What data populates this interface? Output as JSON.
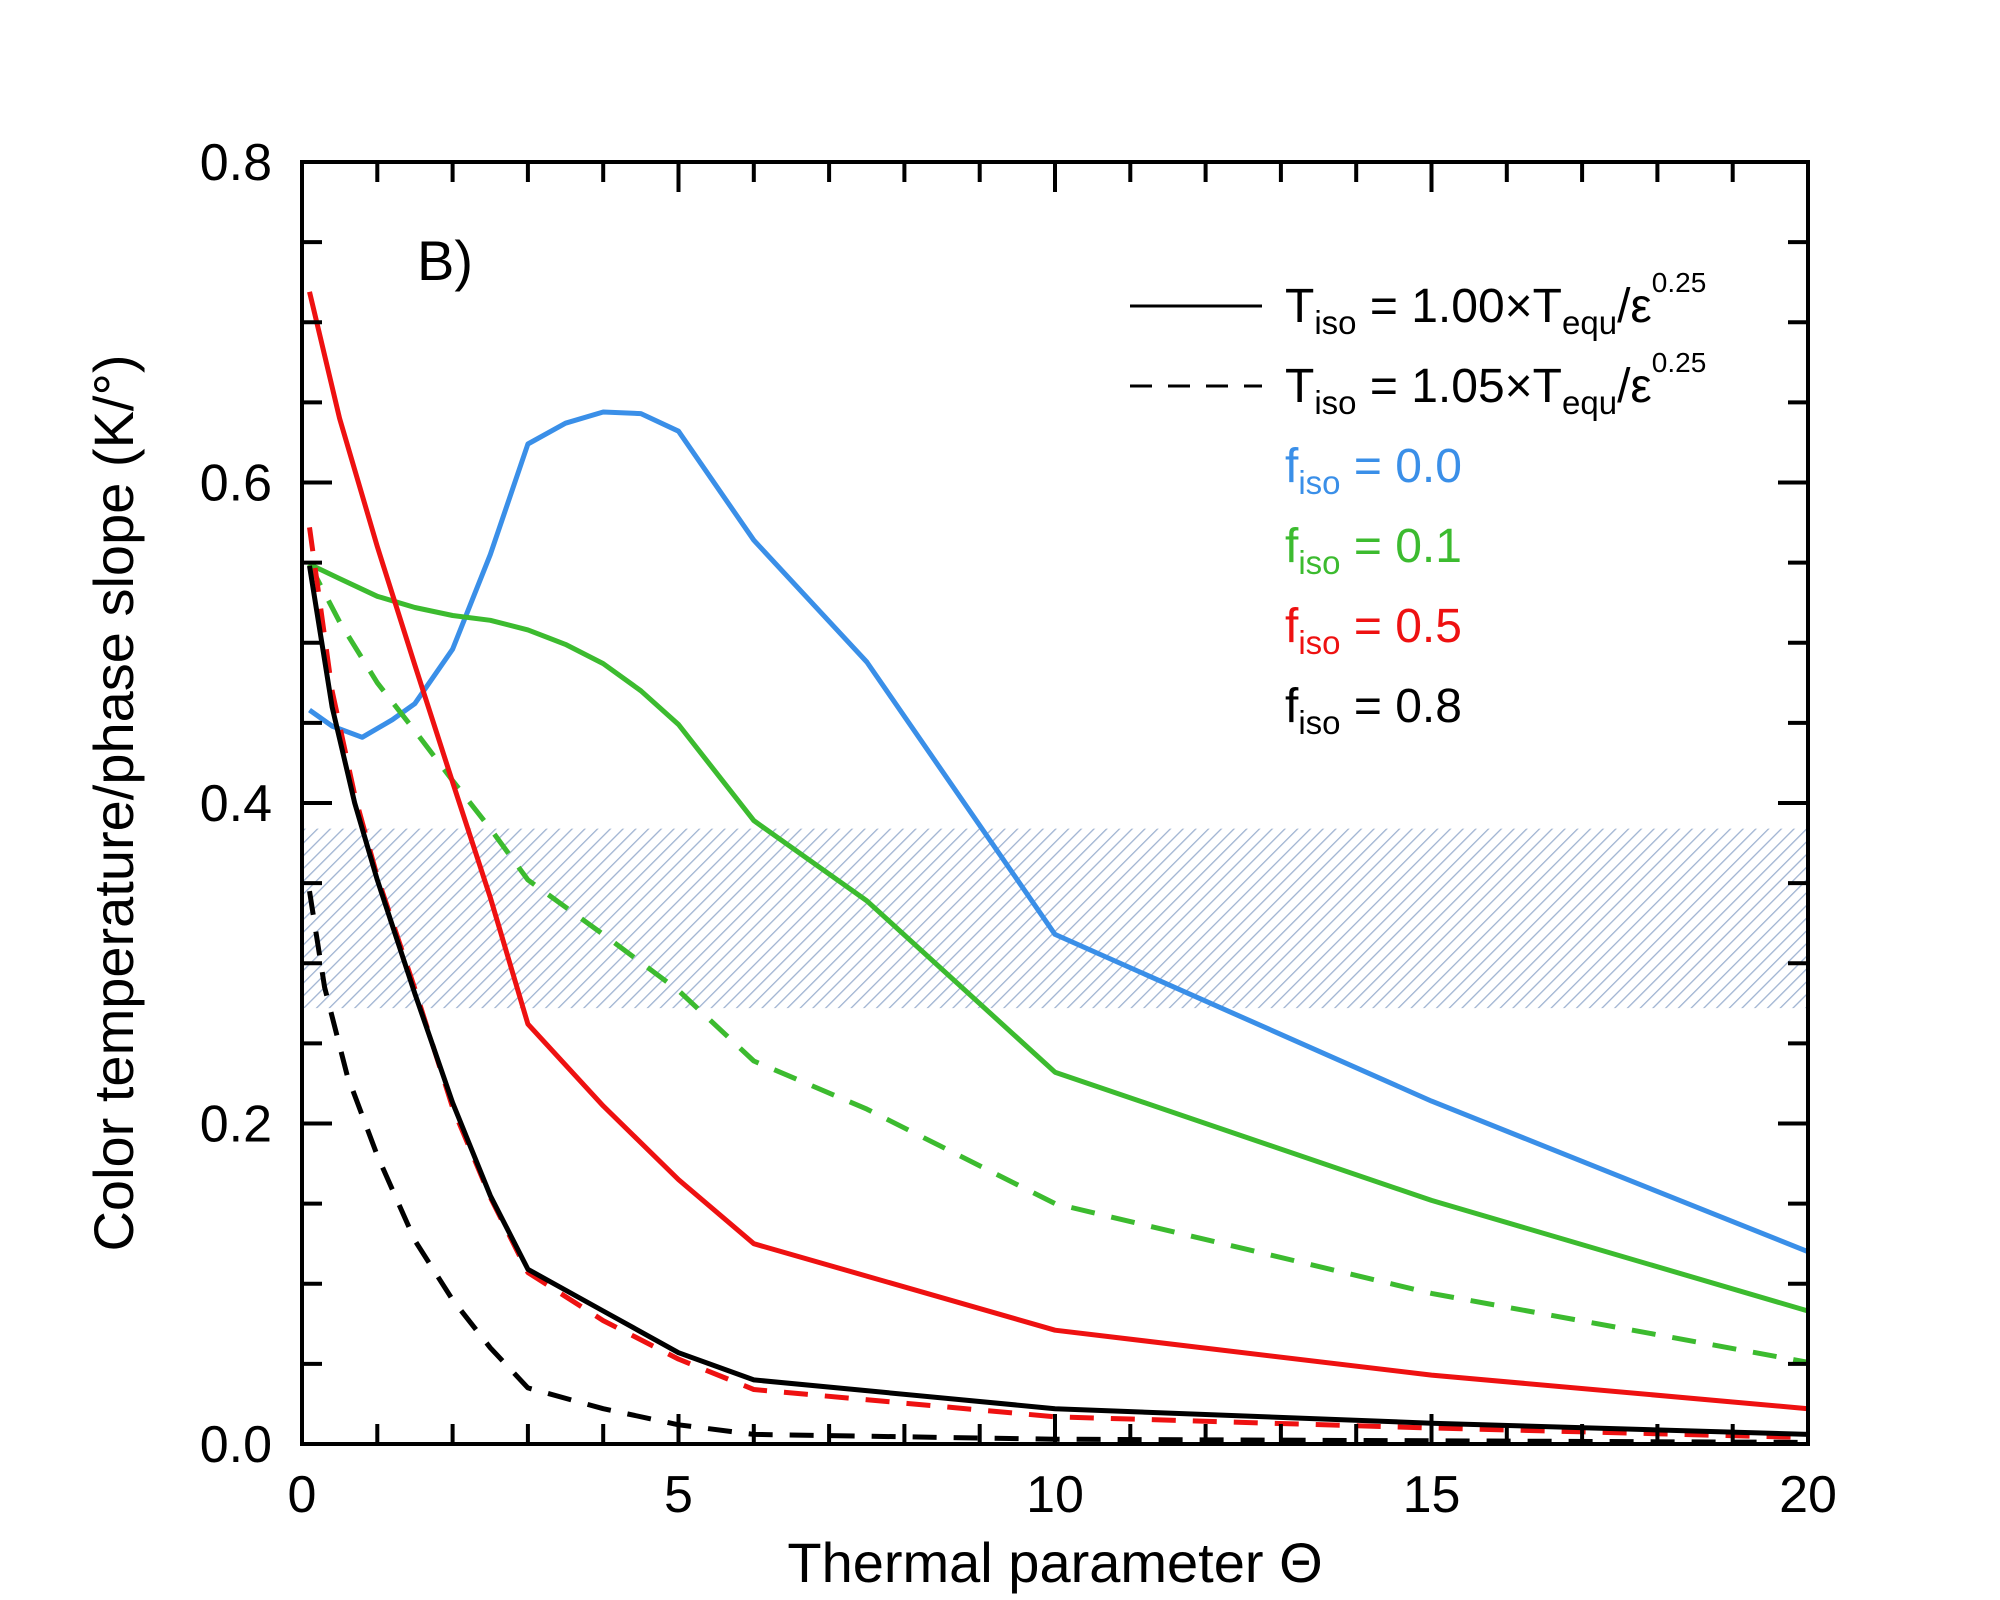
{
  "chart_data": {
    "type": "line",
    "panel_label": "B)",
    "xlabel": "Thermal parameter Θ",
    "ylabel": "Color temperature/phase slope (K/°)",
    "xlim": [
      0,
      20
    ],
    "ylim": [
      0,
      0.8
    ],
    "xticks": [
      0,
      5,
      10,
      15,
      20
    ],
    "xtick_labels": [
      "0",
      "5",
      "10",
      "15",
      "20"
    ],
    "yticks": [
      0.0,
      0.2,
      0.4,
      0.6,
      0.8
    ],
    "ytick_labels": [
      "0.0",
      "0.2",
      "0.4",
      "0.6",
      "0.8"
    ],
    "shaded_band": {
      "y0": 0.272,
      "y1": 0.384,
      "color": "#9fb3d1",
      "pattern": "hatched"
    },
    "legend": {
      "solid": {
        "label": "T",
        "sub1": "iso",
        "eq": " = 1.00×T",
        "sub2": "equ",
        "tail": "/ε",
        "sup": "0.25"
      },
      "dashed": {
        "label": "T",
        "sub1": "iso",
        "eq": " = 1.05×T",
        "sub2": "equ",
        "tail": "/ε",
        "sup": "0.25"
      },
      "f_entries": [
        {
          "label": "f",
          "sub": "iso",
          "value": " = 0.0",
          "color": "#3a8fe8"
        },
        {
          "label": "f",
          "sub": "iso",
          "value": " = 0.1",
          "color": "#3cbb2f"
        },
        {
          "label": "f",
          "sub": "iso",
          "value": " = 0.5",
          "color": "#ee1111"
        },
        {
          "label": "f",
          "sub": "iso",
          "value": " = 0.8",
          "color": "#000000"
        }
      ]
    },
    "series": [
      {
        "name": "f_iso = 0.0, T_iso = 1.00",
        "color": "#3a8fe8",
        "dash": false,
        "x": [
          0.1,
          0.4,
          0.8,
          1.2,
          1.5,
          2.0,
          2.5,
          3.0,
          3.5,
          4.0,
          4.5,
          5.0,
          6.0,
          7.5,
          10,
          15,
          20
        ],
        "y": [
          0.458,
          0.448,
          0.441,
          0.452,
          0.462,
          0.496,
          0.555,
          0.624,
          0.637,
          0.644,
          0.643,
          0.632,
          0.564,
          0.488,
          0.318,
          0.214,
          0.12
        ]
      },
      {
        "name": "f_iso = 0.1, T_iso = 1.00",
        "color": "#3cbb2f",
        "dash": false,
        "x": [
          0.1,
          0.5,
          1.0,
          1.5,
          2.0,
          2.5,
          3.0,
          3.5,
          4.0,
          4.5,
          5.0,
          6.0,
          7.5,
          10,
          15,
          20
        ],
        "y": [
          0.549,
          0.54,
          0.529,
          0.522,
          0.517,
          0.514,
          0.508,
          0.499,
          0.487,
          0.47,
          0.449,
          0.389,
          0.339,
          0.232,
          0.152,
          0.083
        ]
      },
      {
        "name": "f_iso = 0.1, T_iso = 1.05",
        "color": "#3cbb2f",
        "dash": true,
        "x": [
          0.1,
          0.5,
          1.0,
          1.5,
          2.0,
          2.5,
          3.0,
          4.0,
          5.0,
          6.0,
          7.5,
          10,
          15,
          20
        ],
        "y": [
          0.549,
          0.513,
          0.475,
          0.445,
          0.414,
          0.384,
          0.352,
          0.318,
          0.283,
          0.239,
          0.209,
          0.15,
          0.094,
          0.051
        ]
      },
      {
        "name": "f_iso = 0.5, T_iso = 1.00",
        "color": "#ee1111",
        "dash": false,
        "x": [
          0.1,
          0.5,
          1.0,
          1.5,
          2.0,
          2.5,
          3.0,
          4.0,
          5.0,
          6.0,
          10,
          15,
          20
        ],
        "y": [
          0.719,
          0.64,
          0.56,
          0.486,
          0.413,
          0.341,
          0.262,
          0.211,
          0.165,
          0.125,
          0.071,
          0.043,
          0.022
        ]
      },
      {
        "name": "f_iso = 0.5, T_iso = 1.05",
        "color": "#ee1111",
        "dash": true,
        "x": [
          0.1,
          0.4,
          0.7,
          1.0,
          1.5,
          2.0,
          2.5,
          3.0,
          4.0,
          5.0,
          6.0,
          10,
          15,
          20
        ],
        "y": [
          0.572,
          0.47,
          0.405,
          0.354,
          0.284,
          0.21,
          0.154,
          0.107,
          0.077,
          0.053,
          0.034,
          0.017,
          0.01,
          0.004
        ]
      },
      {
        "name": "f_iso = 0.8, T_iso = 1.00",
        "color": "#000000",
        "dash": false,
        "x": [
          0.1,
          0.4,
          0.7,
          1.0,
          1.5,
          2.0,
          2.5,
          3.0,
          4.0,
          5.0,
          6.0,
          10,
          15,
          20
        ],
        "y": [
          0.548,
          0.46,
          0.4,
          0.352,
          0.281,
          0.213,
          0.155,
          0.109,
          0.083,
          0.057,
          0.04,
          0.022,
          0.013,
          0.006
        ]
      },
      {
        "name": "f_iso = 0.8, T_iso = 1.05",
        "color": "#000000",
        "dash": true,
        "x": [
          0.1,
          0.3,
          0.6,
          1.0,
          1.5,
          2.0,
          2.5,
          3.0,
          4.0,
          5.0,
          6.0,
          10,
          15,
          20
        ],
        "y": [
          0.345,
          0.285,
          0.23,
          0.18,
          0.127,
          0.09,
          0.06,
          0.035,
          0.022,
          0.012,
          0.006,
          0.003,
          0.002,
          0.001
        ]
      }
    ]
  }
}
